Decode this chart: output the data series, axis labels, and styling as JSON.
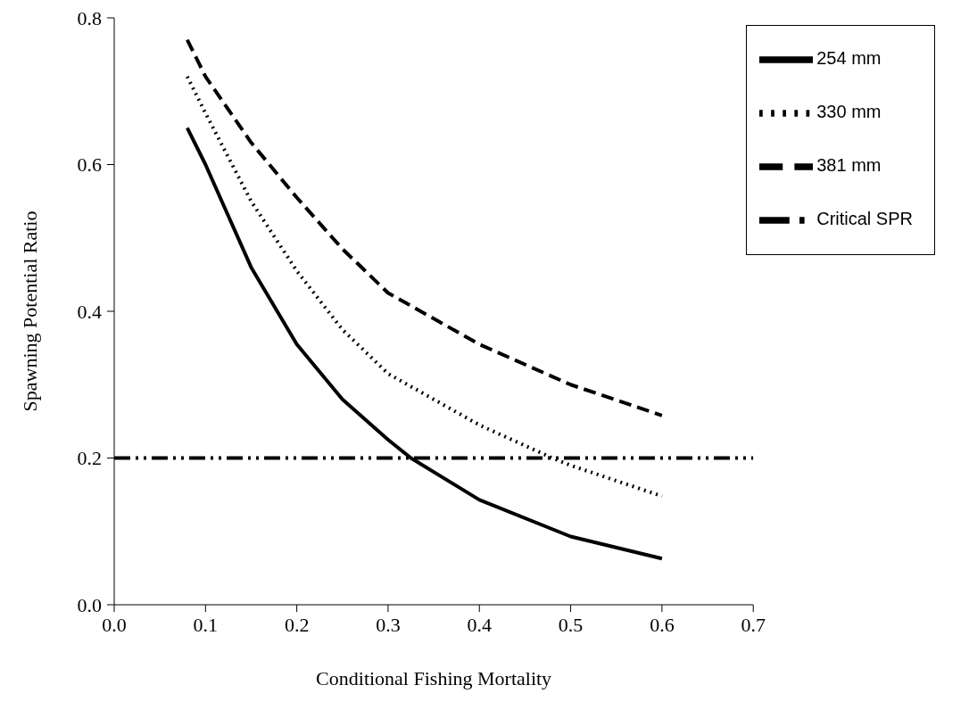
{
  "chart_data": {
    "type": "line",
    "xlabel": "Conditional Fishing Mortality",
    "ylabel": "Spawning Potential Ratio",
    "xlim": [
      0,
      0.7
    ],
    "xticks": [
      {
        "value": 0,
        "label": "0.0"
      },
      0.1,
      0.2,
      0.3,
      0.4,
      0.5,
      0.6,
      0.7
    ],
    "ylim": [
      0,
      0.8
    ],
    "yticks": [
      {
        "value": 0,
        "label": "0.0"
      },
      0.2,
      0.4,
      0.6,
      0.8
    ],
    "grid": false,
    "legend": "top right",
    "marker": "none",
    "series": [
      {
        "name": "254 mm",
        "color": "#000000",
        "line_style": "solid",
        "x": [
          0.08,
          0.1,
          0.15,
          0.2,
          0.25,
          0.3,
          0.325,
          0.4,
          0.5,
          0.6
        ],
        "values": [
          0.65,
          0.6,
          0.46,
          0.355,
          0.28,
          0.225,
          0.2,
          0.143,
          0.093,
          0.063
        ]
      },
      {
        "name": "330 mm",
        "color": "#000000",
        "line_style": "dotted",
        "x": [
          0.08,
          0.1,
          0.15,
          0.2,
          0.25,
          0.3,
          0.4,
          0.48,
          0.5,
          0.6
        ],
        "values": [
          0.72,
          0.67,
          0.55,
          0.455,
          0.375,
          0.315,
          0.245,
          0.2,
          0.19,
          0.148
        ]
      },
      {
        "name": "381 mm",
        "color": "#000000",
        "line_style": "dashed",
        "x": [
          0.08,
          0.1,
          0.15,
          0.2,
          0.25,
          0.3,
          0.4,
          0.5,
          0.6
        ],
        "values": [
          0.77,
          0.72,
          0.63,
          0.555,
          0.485,
          0.425,
          0.355,
          0.3,
          0.258
        ]
      },
      {
        "name": "Critical SPR",
        "color": "#000000",
        "line_style": "dashdotdot",
        "x": [
          0,
          0.7
        ],
        "values": [
          0.2,
          0.2
        ]
      }
    ]
  }
}
